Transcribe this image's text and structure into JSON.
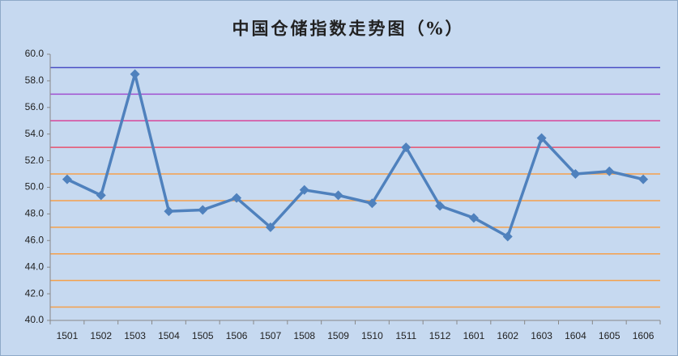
{
  "chart_data": {
    "type": "line",
    "title": "中国仓储指数走势图（%）",
    "categories": [
      "1501",
      "1502",
      "1503",
      "1504",
      "1505",
      "1506",
      "1507",
      "1508",
      "1509",
      "1510",
      "1511",
      "1512",
      "1601",
      "1602",
      "1603",
      "1604",
      "1605",
      "1606"
    ],
    "values": [
      50.6,
      49.4,
      58.5,
      48.2,
      48.3,
      49.2,
      47.0,
      49.8,
      49.4,
      48.8,
      53.0,
      48.6,
      47.7,
      46.3,
      53.7,
      51.0,
      51.2,
      50.6
    ],
    "color": "#4f81bd",
    "ylim": [
      40,
      60
    ],
    "yticks": [
      {
        "value": 40,
        "label": "40.0"
      },
      {
        "value": 42,
        "label": "42.0"
      },
      {
        "value": 44,
        "label": "44.0"
      },
      {
        "value": 46,
        "label": "46.0"
      },
      {
        "value": 48,
        "label": "48.0"
      },
      {
        "value": 50,
        "label": "50.0"
      },
      {
        "value": 52,
        "label": "52.0"
      },
      {
        "value": 54,
        "label": "54.0"
      },
      {
        "value": 56,
        "label": "56.0"
      },
      {
        "value": 58,
        "label": "58.0"
      },
      {
        "value": 60,
        "label": "60.0"
      }
    ],
    "reference_lines": [
      {
        "value": 41,
        "color": "#f5a04a"
      },
      {
        "value": 43,
        "color": "#f5a04a"
      },
      {
        "value": 45,
        "color": "#f5a04a"
      },
      {
        "value": 47,
        "color": "#f5a04a"
      },
      {
        "value": 49,
        "color": "#f5a04a"
      },
      {
        "value": 51,
        "color": "#f5a04a"
      },
      {
        "value": 53,
        "color": "#e8506e"
      },
      {
        "value": 55,
        "color": "#d8469a"
      },
      {
        "value": 57,
        "color": "#a24fd0"
      },
      {
        "value": 59,
        "color": "#4a4fc4"
      }
    ]
  }
}
